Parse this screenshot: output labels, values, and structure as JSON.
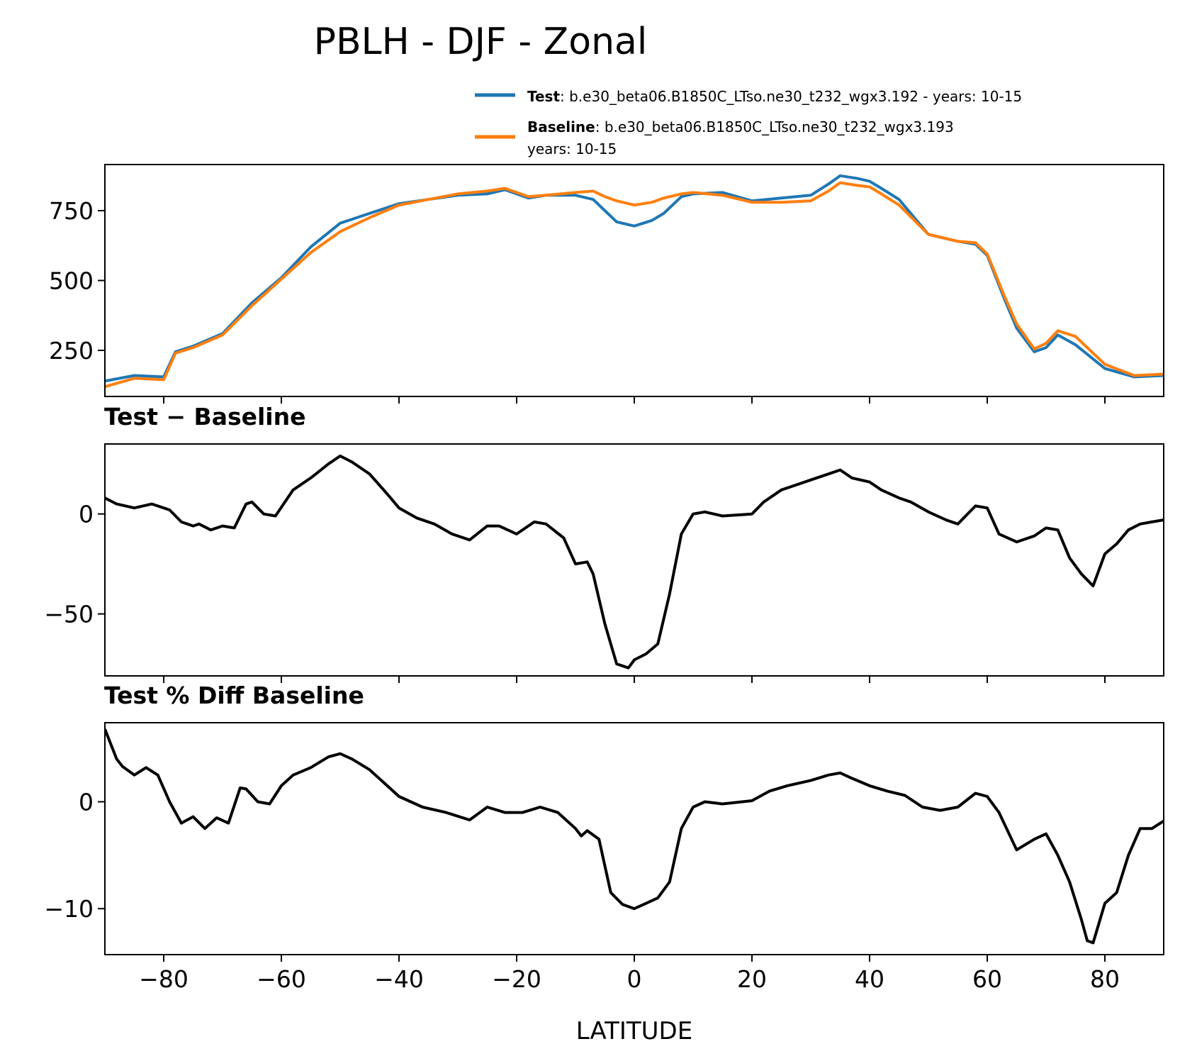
{
  "title": "PBLH - DJF - Zonal",
  "legend": {
    "test_label": "Test",
    "test_desc": ": b.e30_beta06.B1850C_LTso.ne30_t232_wgx3.192 - years: 10-15",
    "baseline_label": "Baseline",
    "baseline_desc": ": b.e30_beta06.B1850C_LTso.ne30_t232_wgx3.193",
    "baseline_years": "years: 10-15"
  },
  "colors": {
    "test": "#1f77b4",
    "baseline": "#ff7f0e",
    "diff": "#000000"
  },
  "chart_data": [
    {
      "type": "line",
      "panel": "values",
      "title": "",
      "xlabel": "",
      "ylabel": "",
      "xlim": [
        -90,
        90
      ],
      "ylim": [
        85,
        915
      ],
      "yticks": [
        250,
        500,
        750
      ],
      "ytick_labels": [
        "250",
        "500",
        "750"
      ],
      "x": [
        -90,
        -85,
        -80,
        -78,
        -75,
        -70,
        -65,
        -60,
        -55,
        -50,
        -45,
        -40,
        -35,
        -30,
        -25,
        -22,
        -18,
        -15,
        -10,
        -7,
        -5,
        -3,
        0,
        3,
        5,
        8,
        10,
        15,
        20,
        25,
        30,
        33,
        35,
        38,
        40,
        42,
        45,
        50,
        55,
        58,
        60,
        63,
        65,
        68,
        70,
        72,
        75,
        80,
        85,
        90
      ],
      "series": [
        {
          "name": "Test",
          "color": "#1f77b4",
          "values": [
            140,
            160,
            155,
            245,
            265,
            310,
            420,
            510,
            620,
            705,
            740,
            775,
            790,
            805,
            810,
            825,
            795,
            805,
            805,
            790,
            750,
            710,
            695,
            715,
            740,
            800,
            810,
            815,
            785,
            795,
            805,
            845,
            875,
            865,
            855,
            830,
            790,
            665,
            640,
            630,
            590,
            430,
            330,
            245,
            260,
            305,
            270,
            185,
            155,
            160
          ]
        },
        {
          "name": "Baseline",
          "color": "#ff7f0e",
          "values": [
            120,
            150,
            145,
            240,
            260,
            305,
            410,
            505,
            600,
            675,
            725,
            770,
            790,
            810,
            820,
            830,
            800,
            805,
            815,
            820,
            800,
            785,
            770,
            780,
            795,
            810,
            815,
            805,
            780,
            780,
            785,
            820,
            850,
            840,
            835,
            810,
            770,
            665,
            640,
            635,
            595,
            440,
            345,
            255,
            275,
            320,
            300,
            200,
            160,
            165
          ]
        }
      ]
    },
    {
      "type": "line",
      "panel": "difference",
      "title": "Test − Baseline",
      "xlabel": "",
      "ylabel": "",
      "xlim": [
        -90,
        90
      ],
      "ylim": [
        -81,
        35
      ],
      "yticks": [
        -50,
        0
      ],
      "ytick_labels": [
        "−50",
        "0"
      ],
      "x": [
        -90,
        -88,
        -85,
        -82,
        -79,
        -77,
        -75,
        -74,
        -72,
        -70,
        -68,
        -66,
        -65,
        -63,
        -61,
        -58,
        -55,
        -52,
        -50,
        -48,
        -45,
        -42,
        -40,
        -37,
        -34,
        -31,
        -28,
        -25,
        -23,
        -20,
        -17,
        -15,
        -12,
        -10,
        -8,
        -7,
        -5,
        -3,
        -1,
        0,
        2,
        4,
        6,
        8,
        10,
        12,
        15,
        20,
        22,
        25,
        28,
        30,
        33,
        35,
        37,
        40,
        42,
        45,
        47,
        50,
        53,
        55,
        58,
        60,
        62,
        65,
        68,
        70,
        72,
        74,
        76,
        78,
        80,
        82,
        84,
        86,
        88,
        90
      ],
      "series": [
        {
          "name": "Test − Baseline",
          "color": "#000000",
          "values": [
            8,
            5,
            3,
            5,
            2,
            -4,
            -6,
            -5,
            -8,
            -6,
            -7,
            5,
            6,
            0,
            -1,
            12,
            18,
            25,
            29,
            26,
            20,
            10,
            3,
            -2,
            -5,
            -10,
            -13,
            -6,
            -6,
            -10,
            -4,
            -5,
            -12,
            -25,
            -24,
            -30,
            -55,
            -75,
            -77,
            -73,
            -70,
            -65,
            -40,
            -10,
            0,
            1,
            -1,
            0,
            6,
            12,
            15,
            17,
            20,
            22,
            18,
            16,
            12,
            8,
            6,
            1,
            -3,
            -5,
            4,
            3,
            -10,
            -14,
            -11,
            -7,
            -8,
            -22,
            -30,
            -36,
            -20,
            -15,
            -8,
            -5,
            -4,
            -3
          ]
        }
      ]
    },
    {
      "type": "line",
      "panel": "percent_difference",
      "title": "Test % Diff Baseline",
      "xlabel": "LATITUDE",
      "ylabel": "",
      "xlim": [
        -90,
        90
      ],
      "ylim": [
        -14.3,
        7.4
      ],
      "yticks": [
        -10,
        0
      ],
      "ytick_labels": [
        "−10",
        "0"
      ],
      "xticks": [
        -80,
        -60,
        -40,
        -20,
        0,
        20,
        40,
        60,
        80
      ],
      "xtick_labels": [
        "−80",
        "−60",
        "−40",
        "−20",
        "0",
        "20",
        "40",
        "60",
        "80"
      ],
      "x": [
        -90,
        -88,
        -87,
        -85,
        -83,
        -81,
        -79,
        -77,
        -75,
        -73,
        -71,
        -69,
        -67,
        -66,
        -64,
        -62,
        -60,
        -58,
        -55,
        -52,
        -50,
        -48,
        -45,
        -42,
        -40,
        -36,
        -32,
        -28,
        -25,
        -22,
        -19,
        -16,
        -13,
        -10,
        -9,
        -8,
        -6,
        -4,
        -2,
        0,
        2,
        4,
        6,
        8,
        10,
        12,
        15,
        20,
        23,
        26,
        30,
        33,
        35,
        37,
        40,
        43,
        46,
        49,
        52,
        55,
        58,
        60,
        62,
        65,
        68,
        70,
        72,
        74,
        76,
        77,
        78,
        80,
        82,
        84,
        86,
        88,
        90
      ],
      "series": [
        {
          "name": "Test % Diff Baseline",
          "color": "#000000",
          "values": [
            6.8,
            4,
            3.3,
            2.5,
            3.2,
            2.5,
            0,
            -2,
            -1.4,
            -2.5,
            -1.5,
            -2,
            1.3,
            1.2,
            0,
            -0.2,
            1.5,
            2.5,
            3.2,
            4.2,
            4.5,
            4,
            3,
            1.5,
            0.5,
            -0.5,
            -1,
            -1.7,
            -0.5,
            -1,
            -1,
            -0.5,
            -1,
            -2.5,
            -3.2,
            -2.7,
            -3.5,
            -8.5,
            -9.6,
            -10,
            -9.5,
            -9,
            -7.5,
            -2.5,
            -0.5,
            0,
            -0.2,
            0.1,
            1,
            1.5,
            2,
            2.5,
            2.7,
            2.2,
            1.5,
            1,
            0.6,
            -0.5,
            -0.8,
            -0.5,
            0.8,
            0.5,
            -1,
            -4.5,
            -3.5,
            -3,
            -5,
            -7.5,
            -11,
            -13,
            -13.2,
            -9.5,
            -8.5,
            -5,
            -2.5,
            -2.5,
            -1.8
          ]
        }
      ]
    }
  ]
}
